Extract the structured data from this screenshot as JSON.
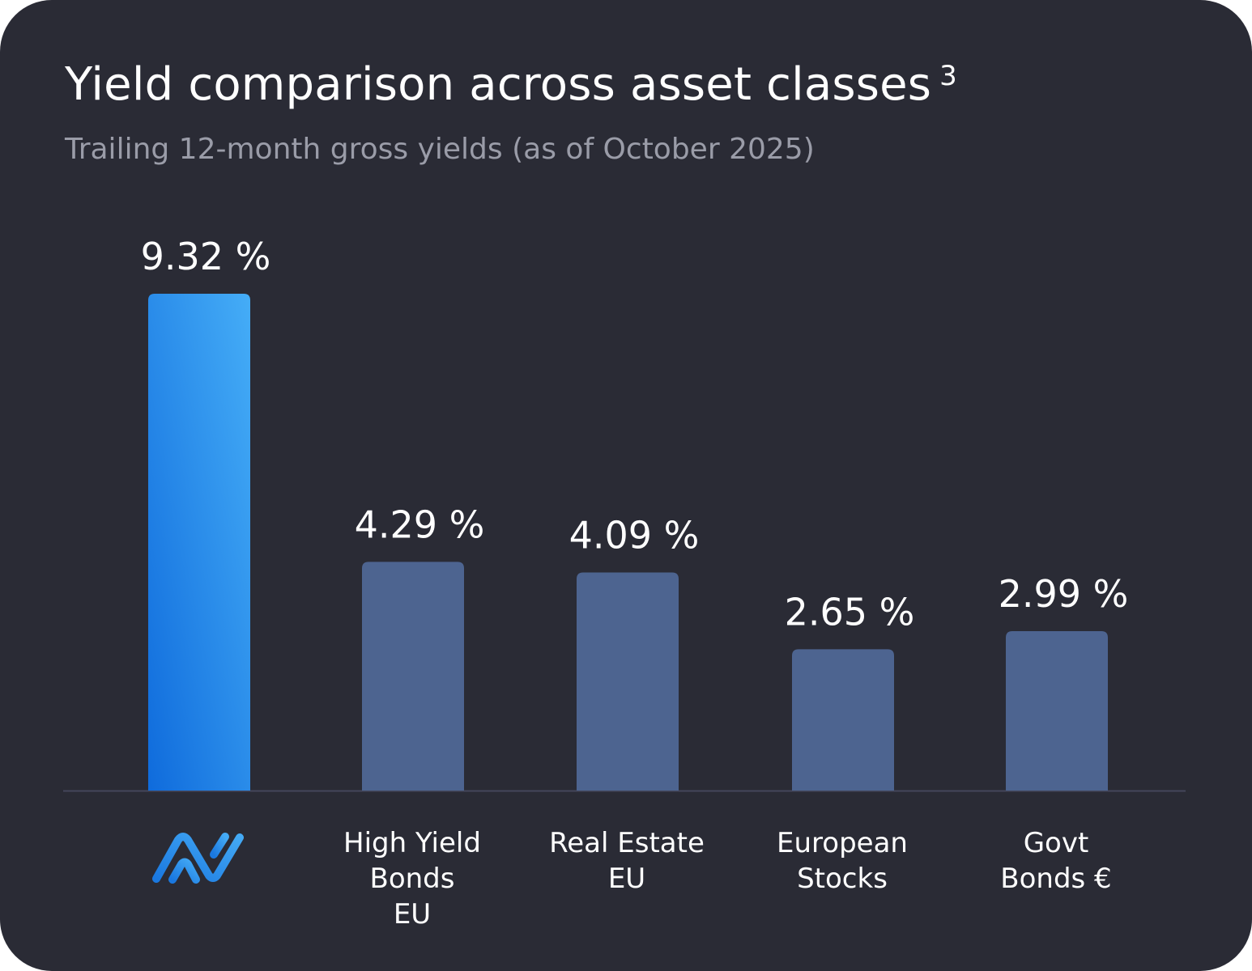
{
  "chart_data": {
    "type": "bar",
    "title": "Yield comparison across asset classes",
    "title_footnote": "3",
    "subtitle": "Trailing 12-month gross yields (as of October 2025)",
    "categories": [
      {
        "label": "",
        "logo": "brand-logo",
        "highlight": true
      },
      {
        "label": [
          "High Yield",
          "Bonds",
          "EU"
        ]
      },
      {
        "label": [
          "Real Estate",
          "EU"
        ]
      },
      {
        "label": [
          "European",
          "Stocks"
        ]
      },
      {
        "label": [
          "Govt",
          "Bonds €"
        ]
      }
    ],
    "values": [
      9.32,
      4.29,
      4.09,
      2.65,
      2.99
    ],
    "value_labels": [
      "9.32 %",
      "4.29 %",
      "4.09 %",
      "2.65 %",
      "2.99 %"
    ],
    "unit": "%",
    "ylim": [
      0,
      9.32
    ],
    "grid": false,
    "axis_visible": false,
    "colors": {
      "background": "#2a2b35",
      "highlight_top": "#3fa9f5",
      "highlight_bottom": "#0f6bdc",
      "bar": "#4d6490",
      "baseline": "#44465a"
    }
  }
}
